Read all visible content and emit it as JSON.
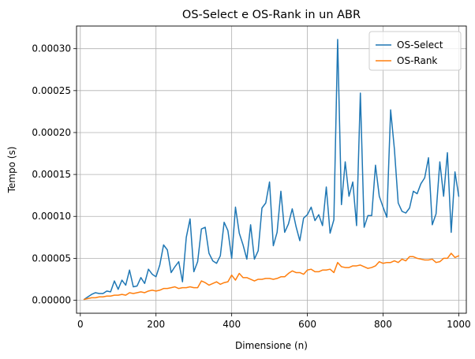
{
  "chart_data": {
    "type": "line",
    "title": "OS-Select e OS-Rank in un ABR",
    "xlabel": "Dimensione (n)",
    "ylabel": "Tempo (s)",
    "xlim": [
      -10,
      1020
    ],
    "ylim": [
      -1.55e-05,
      0.000327
    ],
    "xticks": [
      0,
      200,
      400,
      600,
      800,
      1000
    ],
    "xtick_labels": [
      "0",
      "200",
      "400",
      "600",
      "800",
      "1000"
    ],
    "yticks": [
      0,
      5e-05,
      0.0001,
      0.00015,
      0.0002,
      0.00025,
      0.0003
    ],
    "ytick_labels": [
      "0.00000",
      "0.00005",
      "0.00010",
      "0.00015",
      "0.00020",
      "0.00025",
      "0.00030"
    ],
    "grid": true,
    "legend_position": "top-right",
    "x": [
      10,
      20,
      30,
      40,
      50,
      60,
      70,
      80,
      90,
      100,
      110,
      120,
      130,
      140,
      150,
      160,
      170,
      180,
      190,
      200,
      210,
      220,
      230,
      240,
      250,
      260,
      270,
      280,
      290,
      300,
      310,
      320,
      330,
      340,
      350,
      360,
      370,
      380,
      390,
      400,
      410,
      420,
      430,
      440,
      450,
      460,
      470,
      480,
      490,
      500,
      510,
      520,
      530,
      540,
      550,
      560,
      570,
      580,
      590,
      600,
      610,
      620,
      630,
      640,
      650,
      660,
      670,
      680,
      690,
      700,
      710,
      720,
      730,
      740,
      750,
      760,
      770,
      780,
      790,
      800,
      810,
      820,
      830,
      840,
      850,
      860,
      870,
      880,
      890,
      900,
      910,
      920,
      930,
      940,
      950,
      960,
      970,
      980,
      990,
      1000
    ],
    "series": [
      {
        "name": "OS-Select",
        "color": "#1f77b4",
        "values": [
          1e-06,
          4e-06,
          7e-06,
          9e-06,
          8e-06,
          8e-06,
          1.1e-05,
          1e-05,
          2.3e-05,
          1.3e-05,
          2.4e-05,
          1.8e-05,
          3.6e-05,
          1.6e-05,
          1.7e-05,
          2.7e-05,
          2e-05,
          3.7e-05,
          3.1e-05,
          2.8e-05,
          4.2e-05,
          6.6e-05,
          6e-05,
          3.3e-05,
          4e-05,
          4.6e-05,
          2.2e-05,
          7.5e-05,
          9.7e-05,
          3.4e-05,
          4.6e-05,
          8.5e-05,
          8.7e-05,
          5.6e-05,
          4.7e-05,
          4.4e-05,
          5.3e-05,
          9.3e-05,
          8.3e-05,
          5e-05,
          0.000111,
          8e-05,
          6.6e-05,
          4.9e-05,
          9e-05,
          4.9e-05,
          5.9e-05,
          0.00011,
          0.000116,
          0.000141,
          6.5e-05,
          8.1e-05,
          0.00013,
          8.1e-05,
          9.1e-05,
          0.000109,
          8.8e-05,
          7.1e-05,
          9.8e-05,
          0.000102,
          0.000111,
          9.5e-05,
          0.000102,
          8.9e-05,
          0.000135,
          8e-05,
          9.6e-05,
          0.000311,
          0.000114,
          0.000165,
          0.000124,
          0.000141,
          8.9e-05,
          0.000247,
          8.7e-05,
          0.000101,
          0.000101,
          0.000161,
          0.000124,
          0.000111,
          9.9e-05,
          0.000227,
          0.00018,
          0.000116,
          0.000106,
          0.000104,
          0.00011,
          0.00013,
          0.000127,
          0.000139,
          0.000146,
          0.00017,
          9e-05,
          0.000103,
          0.000165,
          0.000124,
          0.000176,
          8.1e-05,
          0.000153,
          0.000124
        ]
      },
      {
        "name": "OS-Rank",
        "color": "#ff7f0e",
        "values": [
          1e-06,
          2e-06,
          3e-06,
          3e-06,
          4e-06,
          4e-06,
          5e-06,
          5e-06,
          6e-06,
          6e-06,
          7e-06,
          6e-06,
          9e-06,
          8e-06,
          9e-06,
          1e-05,
          9e-06,
          1.1e-05,
          1.2e-05,
          1.1e-05,
          1.2e-05,
          1.4e-05,
          1.4e-05,
          1.5e-05,
          1.6e-05,
          1.4e-05,
          1.5e-05,
          1.5e-05,
          1.6e-05,
          1.5e-05,
          1.5e-05,
          2.3e-05,
          2.1e-05,
          1.8e-05,
          2e-05,
          2.2e-05,
          1.9e-05,
          2.1e-05,
          2.2e-05,
          3e-05,
          2.4e-05,
          3.2e-05,
          2.7e-05,
          2.7e-05,
          2.5e-05,
          2.3e-05,
          2.5e-05,
          2.5e-05,
          2.6e-05,
          2.6e-05,
          2.5e-05,
          2.6e-05,
          2.8e-05,
          2.8e-05,
          3.2e-05,
          3.5e-05,
          3.3e-05,
          3.3e-05,
          3.1e-05,
          3.6e-05,
          3.7e-05,
          3.4e-05,
          3.4e-05,
          3.6e-05,
          3.6e-05,
          3.7e-05,
          3.3e-05,
          4.5e-05,
          4e-05,
          3.9e-05,
          3.9e-05,
          4.1e-05,
          4.1e-05,
          4.2e-05,
          4e-05,
          3.8e-05,
          3.9e-05,
          4.1e-05,
          4.6e-05,
          4.4e-05,
          4.5e-05,
          4.5e-05,
          4.7e-05,
          4.5e-05,
          4.9e-05,
          4.7e-05,
          5.2e-05,
          5.2e-05,
          5e-05,
          4.9e-05,
          4.8e-05,
          4.8e-05,
          4.9e-05,
          4.5e-05,
          4.6e-05,
          5e-05,
          5e-05,
          5.6e-05,
          5.1e-05,
          5.3e-05
        ]
      }
    ]
  }
}
